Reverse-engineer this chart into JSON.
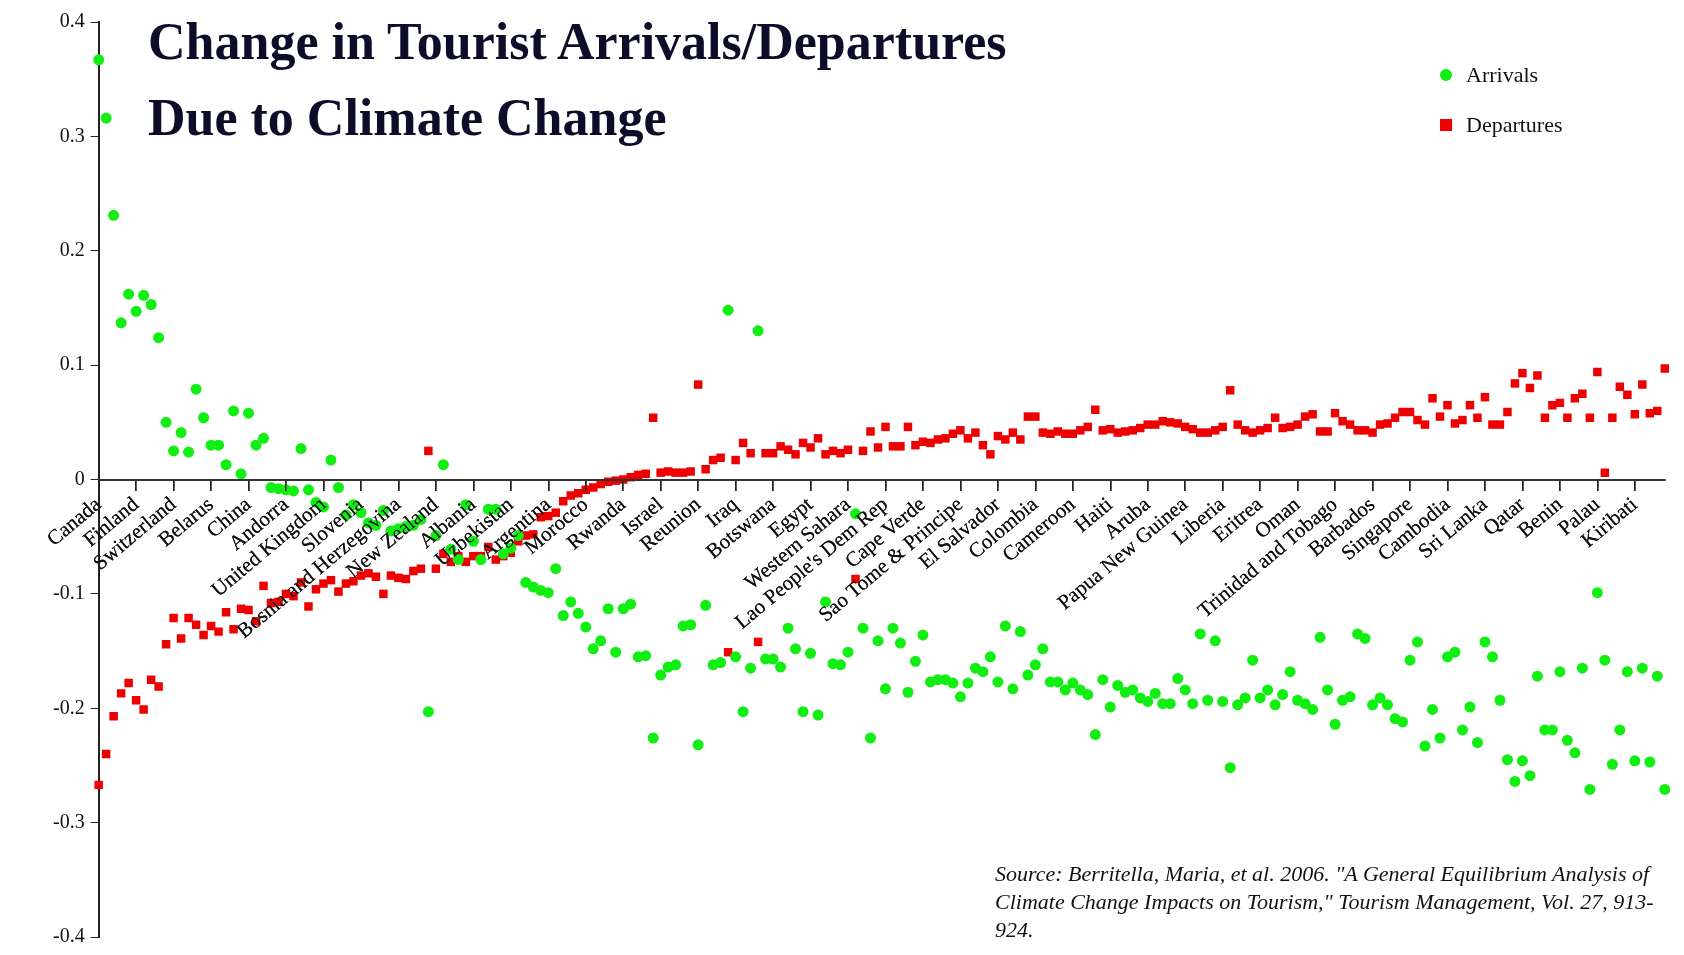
{
  "chart_data": {
    "type": "scatter",
    "title": "Change in Tourist Arrivals/Departures Due to Climate Change",
    "annotations": [
      "Source: Berritella, Maria, et al. 2006. \"A General Equilibrium Analysis of Climate Change Impacts on Tourism,\" Tourism Management, Vol. 27, 913-924."
    ],
    "categories": [
      "Canada",
      null,
      null,
      null,
      null,
      "Finland",
      null,
      null,
      null,
      null,
      "Switzerland",
      null,
      null,
      null,
      null,
      "Belarus",
      null,
      null,
      null,
      null,
      "China",
      null,
      null,
      null,
      null,
      "Andorra",
      null,
      null,
      null,
      null,
      "United Kingdom",
      null,
      null,
      null,
      null,
      "Slovenia",
      null,
      null,
      null,
      null,
      "Bosnia and Herzegovina",
      null,
      null,
      null,
      null,
      "New Zealand",
      null,
      null,
      null,
      null,
      "Albania",
      null,
      null,
      null,
      null,
      "Uzbekistan",
      null,
      null,
      null,
      null,
      "Argentina",
      null,
      null,
      null,
      null,
      "Morocco",
      null,
      null,
      null,
      null,
      "Rwanda",
      null,
      null,
      null,
      null,
      "Israel",
      null,
      null,
      null,
      null,
      "Reunion",
      null,
      null,
      null,
      null,
      "Iraq",
      null,
      null,
      null,
      null,
      "Botswana",
      null,
      null,
      null,
      null,
      "Egypt",
      null,
      null,
      null,
      null,
      "Western Sahara",
      null,
      null,
      null,
      null,
      "Lao People's Dem Rep",
      null,
      null,
      null,
      null,
      "Cape Verde",
      null,
      null,
      null,
      null,
      "Sao Tome & Principe",
      null,
      null,
      null,
      null,
      "El Salvador",
      null,
      null,
      null,
      null,
      "Colombia",
      null,
      null,
      null,
      null,
      "Cameroon",
      null,
      null,
      null,
      null,
      "Haiti",
      null,
      null,
      null,
      null,
      "Aruba",
      null,
      null,
      null,
      null,
      "Papua New Guinea",
      null,
      null,
      null,
      null,
      "Liberia",
      null,
      null,
      null,
      null,
      "Eritrea",
      null,
      null,
      null,
      null,
      "Oman",
      null,
      null,
      null,
      null,
      "Trinidad and Tobago",
      null,
      null,
      null,
      null,
      "Barbados",
      null,
      null,
      null,
      null,
      "Singapore",
      null,
      null,
      null,
      null,
      "Cambodia",
      null,
      null,
      null,
      null,
      "Sri Lanka",
      null,
      null,
      null,
      null,
      "Qatar",
      null,
      null,
      null,
      null,
      "Benin",
      null,
      null,
      null,
      null,
      "Palau",
      null,
      null,
      null,
      null,
      "Kiribati",
      null,
      null,
      null,
      null
    ],
    "series": [
      {
        "name": "Arrivals",
        "color": "#11ee11",
        "marker": "circle",
        "values": [
          0.367,
          0.316,
          0.231,
          0.137,
          0.162,
          0.147,
          0.161,
          0.153,
          0.124,
          0.05,
          0.025,
          0.041,
          0.024,
          0.079,
          0.054,
          0.03,
          0.03,
          0.013,
          0.06,
          0.005,
          0.058,
          0.03,
          0.036,
          -0.007,
          -0.008,
          -0.009,
          -0.01,
          0.027,
          -0.009,
          -0.02,
          -0.024,
          0.017,
          -0.007,
          -0.031,
          -0.022,
          -0.029,
          -0.038,
          -0.04,
          -0.027,
          -0.045,
          -0.043,
          -0.041,
          -0.04,
          -0.035,
          -0.203,
          -0.049,
          0.013,
          -0.061,
          -0.07,
          -0.022,
          -0.054,
          -0.07,
          -0.026,
          -0.026,
          -0.065,
          -0.06,
          -0.049,
          -0.09,
          -0.094,
          -0.097,
          -0.099,
          -0.078,
          -0.119,
          -0.107,
          -0.117,
          -0.129,
          -0.148,
          -0.141,
          -0.113,
          -0.151,
          -0.113,
          -0.109,
          -0.155,
          -0.154,
          -0.226,
          -0.171,
          -0.164,
          -0.162,
          -0.128,
          -0.127,
          -0.232,
          -0.11,
          -0.162,
          -0.16,
          0.148,
          -0.155,
          -0.203,
          -0.165,
          0.13,
          -0.157,
          -0.157,
          -0.164,
          -0.13,
          -0.148,
          -0.203,
          -0.152,
          -0.206,
          -0.107,
          -0.161,
          -0.162,
          -0.151,
          -0.03,
          -0.13,
          -0.226,
          -0.141,
          -0.183,
          -0.13,
          -0.143,
          -0.186,
          -0.159,
          -0.136,
          -0.177,
          -0.175,
          -0.175,
          -0.178,
          -0.19,
          -0.178,
          -0.165,
          -0.168,
          -0.155,
          -0.177,
          -0.128,
          -0.183,
          -0.133,
          -0.171,
          -0.162,
          -0.148,
          -0.177,
          -0.177,
          -0.184,
          -0.178,
          -0.184,
          -0.188,
          -0.223,
          -0.175,
          -0.199,
          -0.18,
          -0.186,
          -0.184,
          -0.191,
          -0.194,
          -0.187,
          -0.196,
          -0.196,
          -0.174,
          -0.184,
          -0.196,
          -0.135,
          -0.193,
          -0.141,
          -0.194,
          -0.252,
          -0.197,
          -0.191,
          -0.158,
          -0.191,
          -0.184,
          -0.197,
          -0.188,
          -0.168,
          -0.193,
          -0.196,
          -0.201,
          -0.138,
          -0.184,
          -0.214,
          -0.193,
          -0.19,
          -0.135,
          -0.139,
          -0.197,
          -0.191,
          -0.197,
          -0.209,
          -0.212,
          -0.158,
          -0.142,
          -0.233,
          -0.201,
          -0.226,
          -0.155,
          -0.151,
          -0.219,
          -0.199,
          -0.23,
          -0.142,
          -0.155,
          -0.193,
          -0.245,
          -0.264,
          -0.246,
          -0.259,
          -0.172,
          -0.219,
          -0.219,
          -0.168,
          -0.228,
          -0.239,
          -0.165,
          -0.271,
          -0.099,
          -0.158,
          -0.249,
          -0.219,
          -0.168,
          -0.246,
          -0.165,
          -0.247,
          -0.172,
          -0.271
        ]
      },
      {
        "name": "Departures",
        "color": "#ee0000",
        "marker": "square",
        "values": [
          -0.267,
          -0.24,
          -0.207,
          -0.187,
          -0.178,
          -0.193,
          -0.201,
          -0.175,
          -0.181,
          -0.144,
          -0.121,
          -0.139,
          -0.121,
          -0.127,
          -0.136,
          -0.128,
          -0.133,
          -0.116,
          -0.131,
          -0.113,
          -0.114,
          -0.124,
          -0.093,
          -0.108,
          -0.107,
          -0.1,
          -0.102,
          -0.09,
          -0.111,
          -0.096,
          -0.091,
          -0.088,
          -0.098,
          -0.091,
          -0.089,
          -0.084,
          -0.082,
          -0.085,
          -0.1,
          -0.084,
          -0.086,
          -0.087,
          -0.08,
          -0.078,
          0.025,
          -0.078,
          -0.065,
          -0.072,
          -0.067,
          -0.072,
          -0.067,
          -0.067,
          -0.059,
          -0.07,
          -0.067,
          -0.064,
          -0.054,
          -0.049,
          -0.048,
          -0.033,
          -0.032,
          -0.029,
          -0.019,
          -0.014,
          -0.012,
          -0.009,
          -0.007,
          -0.004,
          -0.002,
          -0.001,
          0.0,
          0.002,
          0.004,
          0.005,
          0.054,
          0.006,
          0.007,
          0.006,
          0.006,
          0.007,
          0.083,
          0.009,
          0.017,
          0.019,
          -0.151,
          0.017,
          0.032,
          0.023,
          -0.142,
          0.023,
          0.023,
          0.029,
          0.026,
          0.022,
          0.032,
          0.028,
          0.036,
          0.022,
          0.025,
          0.023,
          0.026,
          -0.087,
          0.025,
          0.042,
          0.028,
          0.046,
          0.029,
          0.029,
          0.046,
          0.03,
          0.033,
          0.032,
          0.035,
          0.036,
          0.04,
          0.043,
          0.036,
          0.041,
          0.03,
          0.022,
          0.038,
          0.035,
          0.041,
          0.035,
          0.055,
          0.055,
          0.041,
          0.04,
          0.042,
          0.04,
          0.04,
          0.043,
          0.046,
          0.061,
          0.043,
          0.044,
          0.041,
          0.042,
          0.043,
          0.045,
          0.048,
          0.048,
          0.051,
          0.05,
          0.049,
          0.046,
          0.044,
          0.041,
          0.041,
          0.043,
          0.046,
          0.078,
          0.048,
          0.043,
          0.041,
          0.043,
          0.045,
          0.054,
          0.045,
          0.046,
          0.048,
          0.055,
          0.057,
          0.042,
          0.042,
          0.058,
          0.051,
          0.048,
          0.043,
          0.043,
          0.041,
          0.048,
          0.049,
          0.054,
          0.059,
          0.059,
          0.052,
          0.048,
          0.071,
          0.055,
          0.065,
          0.049,
          0.052,
          0.065,
          0.054,
          0.072,
          0.048,
          0.048,
          0.059,
          0.084,
          0.093,
          0.08,
          0.091,
          0.054,
          0.065,
          0.067,
          0.054,
          0.071,
          0.075,
          0.054,
          0.094,
          0.006,
          0.054,
          0.081,
          0.074,
          0.057,
          0.083,
          0.058,
          0.06,
          0.097
        ]
      }
    ],
    "ylim": [
      -0.4,
      0.4
    ],
    "yticks": [
      -0.4,
      -0.3,
      -0.2,
      -0.1,
      0,
      0.1,
      0.2,
      0.3,
      0.4
    ],
    "grid": false,
    "legend": "top right"
  }
}
